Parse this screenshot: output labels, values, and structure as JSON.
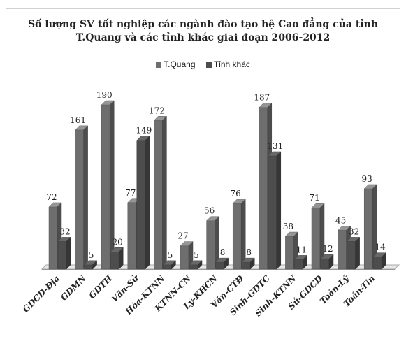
{
  "chart_data": {
    "type": "bar",
    "title": "Số lượng SV tốt nghiệp các ngành đào tạo hệ Cao đẳng của tỉnh T.Quang và các tỉnh khác giai đoạn 2006-2012",
    "categories": [
      "GDCD-Địa",
      "GDMN",
      "GDTH",
      "Văn-Sử",
      "Hóa-KTNN",
      "KTNN-CN",
      "Lý-KHCN",
      "Văn-CTĐ",
      "Sinh-GDTC",
      "Sinh-KTNN",
      "Sử-GDCD",
      "Toán-Lý",
      "Toán-Tin"
    ],
    "series": [
      {
        "name": "T.Quang",
        "color": "#6e6e6e",
        "values": [
          72,
          161,
          190,
          77,
          172,
          27,
          56,
          76,
          187,
          38,
          71,
          45,
          93
        ]
      },
      {
        "name": "Tỉnh khác",
        "color": "#4d4d4d",
        "values": [
          32,
          5,
          20,
          149,
          5,
          5,
          8,
          8,
          131,
          11,
          12,
          32,
          14
        ]
      }
    ],
    "ylim": [
      0,
      190
    ],
    "legend_position": "top-center",
    "grid": false
  }
}
